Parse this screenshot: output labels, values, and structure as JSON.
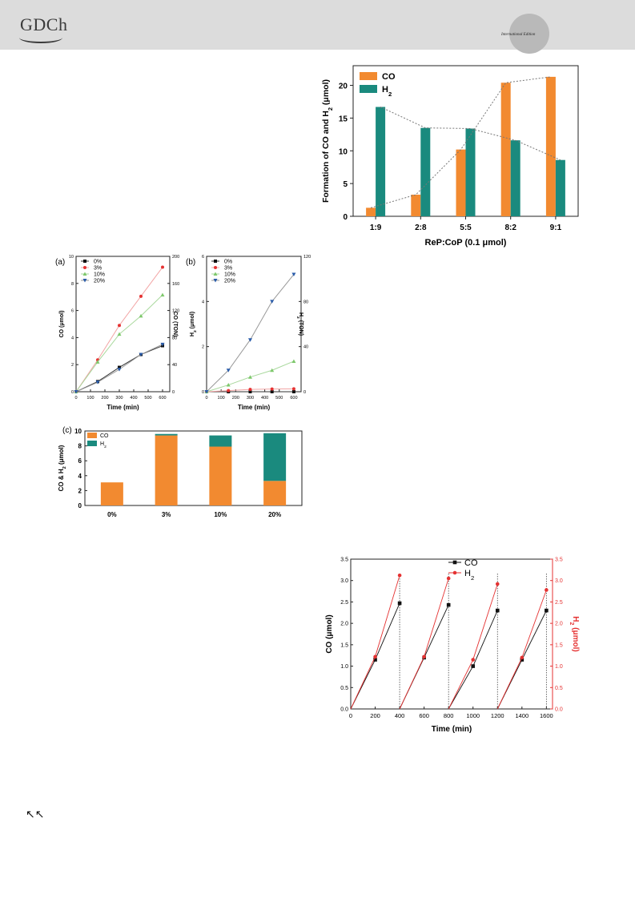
{
  "header": {
    "logo": "GDCh",
    "badge_text": "International Edition"
  },
  "corner_icon": "double-up-left-arrows",
  "colors": {
    "co": "#f28a30",
    "h2": "#1a8a7e",
    "red": "#e53232",
    "blue": "#2a5caa",
    "green": "#7dc86b",
    "black": "#111111"
  },
  "chart_data": [
    {
      "id": "ratio",
      "type": "bar",
      "categories": [
        "1:9",
        "2:8",
        "5:5",
        "8:2",
        "9:1"
      ],
      "series": [
        {
          "name": "CO",
          "values": [
            1.3,
            3.3,
            10.2,
            20.4,
            21.3
          ]
        },
        {
          "name": "H2",
          "values": [
            16.7,
            13.5,
            13.4,
            11.6,
            8.6
          ]
        }
      ],
      "xlabel": "ReP:CoP (0.1 μmol)",
      "ylabel": "Formation of CO and H2 (μmol)",
      "ylim": [
        0,
        23
      ],
      "yticks": [
        "0",
        "5",
        "10",
        "15",
        "20"
      ],
      "legend": [
        "CO",
        "H2"
      ]
    },
    {
      "id": "a",
      "type": "line",
      "panel": "(a)",
      "x": [
        0,
        150,
        300,
        450,
        600
      ],
      "series": [
        {
          "name": "0%",
          "values": [
            0,
            0.75,
            1.8,
            2.75,
            3.4
          ]
        },
        {
          "name": "3%",
          "values": [
            0,
            2.35,
            4.9,
            7.05,
            9.2
          ]
        },
        {
          "name": "10%",
          "values": [
            0,
            2.2,
            4.25,
            5.6,
            7.15
          ]
        },
        {
          "name": "20%",
          "values": [
            0,
            0.7,
            1.65,
            2.75,
            3.5
          ]
        }
      ],
      "xlabel": "Time (min)",
      "ylabel": "CO (μmol)",
      "y2label": "CO (TON)",
      "xticks": [
        "0",
        "100",
        "200",
        "300",
        "400",
        "500",
        "600"
      ],
      "yticks": [
        "0",
        "2",
        "4",
        "6",
        "8",
        "10"
      ],
      "y2ticks": [
        "0",
        "40",
        "80",
        "120",
        "160",
        "200"
      ],
      "xlim": [
        0,
        650
      ],
      "ylim": [
        0,
        10
      ],
      "y2lim": [
        0,
        200
      ]
    },
    {
      "id": "b",
      "type": "line",
      "panel": "(b)",
      "x": [
        0,
        150,
        300,
        450,
        600
      ],
      "series": [
        {
          "name": "0%",
          "values": [
            0,
            0,
            0,
            0,
            0
          ]
        },
        {
          "name": "3%",
          "values": [
            0,
            0.05,
            0.1,
            0.12,
            0.13
          ]
        },
        {
          "name": "10%",
          "values": [
            0,
            0.3,
            0.65,
            0.95,
            1.35
          ]
        },
        {
          "name": "20%",
          "values": [
            0,
            0.95,
            2.3,
            4.0,
            5.2
          ]
        }
      ],
      "xlabel": "Time (min)",
      "ylabel": "H2 (μmol)",
      "y2label": "H2 (TON)",
      "xticks": [
        "0",
        "100",
        "200",
        "300",
        "400",
        "500",
        "600"
      ],
      "yticks": [
        "0",
        "2",
        "4",
        "6"
      ],
      "y2ticks": [
        "0",
        "40",
        "80",
        "120"
      ],
      "xlim": [
        0,
        650
      ],
      "ylim": [
        0,
        6
      ],
      "y2lim": [
        0,
        120
      ]
    },
    {
      "id": "c",
      "type": "bar",
      "panel": "(c)",
      "stacked": true,
      "categories": [
        "0%",
        "3%",
        "10%",
        "20%"
      ],
      "series": [
        {
          "name": "CO",
          "values": [
            3.1,
            9.4,
            7.9,
            3.3
          ]
        },
        {
          "name": "H2",
          "values": [
            0,
            0.2,
            1.5,
            6.4
          ]
        }
      ],
      "ylabel": "CO & H2 (μmol)",
      "yticks": [
        "0",
        "2",
        "4",
        "6",
        "8",
        "10"
      ],
      "ylim": [
        0,
        10
      ]
    },
    {
      "id": "cycle",
      "type": "line",
      "series": [
        {
          "name": "CO",
          "points": [
            [
              0,
              0
            ],
            [
              200,
              1.15
            ],
            [
              400,
              2.47
            ],
            [
              400,
              0
            ],
            [
              600,
              1.2
            ],
            [
              800,
              2.43
            ],
            [
              800,
              0
            ],
            [
              1000,
              1.0
            ],
            [
              1200,
              2.3
            ],
            [
              1200,
              0
            ],
            [
              1400,
              1.15
            ],
            [
              1600,
              2.3
            ]
          ]
        },
        {
          "name": "H2",
          "points": [
            [
              0,
              0
            ],
            [
              200,
              1.22
            ],
            [
              400,
              3.12
            ],
            [
              400,
              0
            ],
            [
              600,
              1.22
            ],
            [
              800,
              3.05
            ],
            [
              800,
              0
            ],
            [
              1000,
              1.15
            ],
            [
              1200,
              2.92
            ],
            [
              1200,
              0
            ],
            [
              1400,
              1.2
            ],
            [
              1600,
              2.78
            ]
          ]
        }
      ],
      "xlabel": "Time (min)",
      "ylabel": "CO (μmol)",
      "y2label": "H2 (μmol)",
      "xticks": [
        "0",
        "200",
        "400",
        "600",
        "800",
        "1000",
        "1200",
        "1400",
        "1600"
      ],
      "yticks": [
        "0.0",
        "0.5",
        "1.0",
        "1.5",
        "2.0",
        "2.5",
        "3.0",
        "3.5"
      ],
      "y2ticks": [
        "0.0",
        "0.5",
        "1.0",
        "1.5",
        "2.0",
        "2.5",
        "3.0",
        "3.5"
      ],
      "xlim": [
        0,
        1650
      ],
      "ylim": [
        0,
        3.5
      ],
      "legend": [
        "CO",
        "H2"
      ]
    }
  ]
}
